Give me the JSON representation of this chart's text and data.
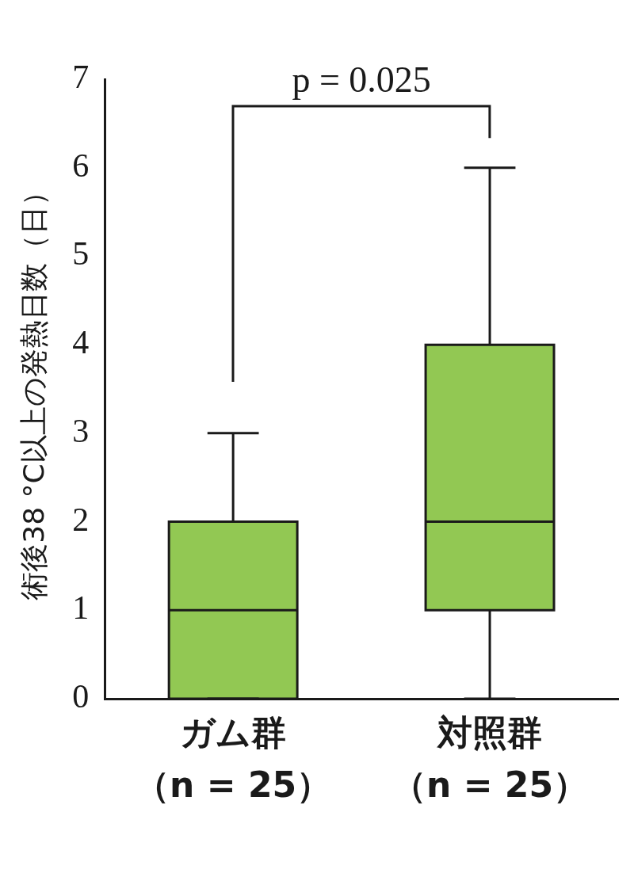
{
  "chart_data": {
    "type": "box",
    "ylabel": "術後38 °C以上の発熱日数（日）",
    "categories": [
      "ガム群（n = 25）",
      "対照群（n = 25）"
    ],
    "series": [
      {
        "color": "#92c853",
        "boxes": [
          {
            "low": 0,
            "q1": 0,
            "median": 1,
            "q3": 2,
            "high": 3
          },
          {
            "low": 0,
            "q1": 1,
            "median": 2,
            "q3": 4,
            "high": 6
          }
        ]
      }
    ],
    "ylim": [
      0,
      7
    ],
    "yticks": [
      0,
      1,
      2,
      3,
      4,
      5,
      6,
      7
    ],
    "grid": false,
    "legend": false,
    "annotations": [
      "p = 0.025"
    ]
  }
}
